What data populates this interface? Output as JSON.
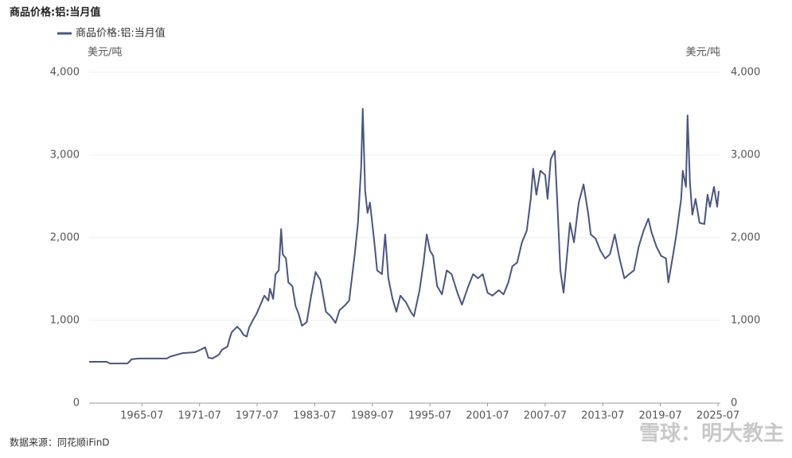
{
  "chart_data": {
    "type": "line",
    "title": "商品价格:铝:当月值",
    "y_label": "美元/吨",
    "y2_label": "美元/吨",
    "source": "数据来源：同花顺iFinD",
    "watermark": "雪球：明大教主",
    "xlim": [
      "1960-01",
      "2025-10"
    ],
    "xticks": [
      "1965-07",
      "1971-07",
      "1977-07",
      "1983-07",
      "1989-07",
      "1995-07",
      "2001-07",
      "2007-07",
      "2013-07",
      "2019-07",
      "2025-07"
    ],
    "ylim": [
      0,
      4000
    ],
    "yticks": [
      0,
      {
        "value": 1000,
        "label": "1,000"
      },
      {
        "value": 2000,
        "label": "2,000"
      },
      {
        "value": 3000,
        "label": "3,000"
      },
      {
        "value": 4000,
        "label": "4,000"
      }
    ],
    "y2lim": [
      0,
      4000
    ],
    "y2ticks": [
      0,
      {
        "value": 1000,
        "label": "1,000"
      },
      {
        "value": 2000,
        "label": "2,000"
      },
      {
        "value": 3000,
        "label": "3,000"
      },
      {
        "value": 4000,
        "label": "4,000"
      }
    ],
    "grid": true,
    "legend": "top-left",
    "x": [
      "1960-01",
      "1961-11",
      "1962-03",
      "1964-01",
      "1964-06",
      "1965-03",
      "1968-02",
      "1968-07",
      "1969-10",
      "1971-01",
      "1971-08",
      "1972-02",
      "1972-06",
      "1972-11",
      "1973-07",
      "1973-11",
      "1974-06",
      "1974-08",
      "1974-11",
      "1975-06",
      "1975-10",
      "1976-02",
      "1976-06",
      "1976-09",
      "1977-02",
      "1977-06",
      "1977-10",
      "1978-04",
      "1978-09",
      "1978-11",
      "1979-03",
      "1979-06",
      "1979-10",
      "1980-01",
      "1980-03",
      "1980-07",
      "1980-10",
      "1981-03",
      "1981-07",
      "1981-11",
      "1982-03",
      "1982-09",
      "1983-02",
      "1983-08",
      "1984-02",
      "1984-06",
      "1984-09",
      "1985-03",
      "1985-09",
      "1986-02",
      "1986-08",
      "1987-02",
      "1987-06",
      "1987-09",
      "1988-01",
      "1988-05",
      "1988-07",
      "1988-10",
      "1989-01",
      "1989-04",
      "1989-09",
      "1990-01",
      "1990-07",
      "1990-11",
      "1991-03",
      "1991-08",
      "1992-01",
      "1992-06",
      "1993-01",
      "1993-07",
      "1993-11",
      "1994-06",
      "1994-11",
      "1995-03",
      "1995-07",
      "1995-11",
      "1996-04",
      "1996-10",
      "1997-04",
      "1997-10",
      "1998-06",
      "1998-11",
      "1999-07",
      "2000-01",
      "2000-07",
      "2001-01",
      "2001-07",
      "2002-01",
      "2002-09",
      "2003-03",
      "2003-09",
      "2004-02",
      "2004-08",
      "2005-02",
      "2005-08",
      "2006-01",
      "2006-04",
      "2006-08",
      "2007-01",
      "2007-07",
      "2007-10",
      "2008-02",
      "2008-07",
      "2008-10",
      "2009-02",
      "2009-06",
      "2009-10",
      "2010-02",
      "2010-07",
      "2011-01",
      "2011-07",
      "2012-01",
      "2012-04",
      "2012-10",
      "2013-04",
      "2013-10",
      "2014-04",
      "2014-10",
      "2015-04",
      "2015-10",
      "2016-04",
      "2016-10",
      "2017-04",
      "2017-10",
      "2018-04",
      "2018-08",
      "2019-02",
      "2019-08",
      "2020-02",
      "2020-05",
      "2020-11",
      "2021-03",
      "2021-09",
      "2021-11",
      "2022-03",
      "2022-05",
      "2022-08",
      "2022-11",
      "2023-03",
      "2023-08",
      "2024-02",
      "2024-06",
      "2024-09",
      "2025-02",
      "2025-06",
      "2025-08"
    ],
    "series": [
      {
        "name": "商品价格:铝:当月值",
        "color": "#4a5580",
        "values": [
          500,
          500,
          480,
          480,
          530,
          540,
          540,
          565,
          605,
          615,
          645,
          675,
          550,
          540,
          585,
          645,
          685,
          760,
          855,
          925,
          885,
          825,
          805,
          915,
          1010,
          1075,
          1165,
          1300,
          1240,
          1385,
          1260,
          1560,
          1605,
          2105,
          1800,
          1750,
          1460,
          1415,
          1175,
          1075,
          935,
          980,
          1270,
          1585,
          1490,
          1270,
          1105,
          1050,
          970,
          1125,
          1175,
          1240,
          1560,
          1800,
          2180,
          2855,
          3560,
          2565,
          2300,
          2425,
          1990,
          1605,
          1560,
          2040,
          1510,
          1270,
          1105,
          1300,
          1220,
          1105,
          1050,
          1365,
          1700,
          2040,
          1845,
          1780,
          1415,
          1315,
          1605,
          1560,
          1315,
          1190,
          1415,
          1560,
          1510,
          1560,
          1335,
          1300,
          1365,
          1315,
          1460,
          1655,
          1700,
          1945,
          2085,
          2470,
          2835,
          2520,
          2810,
          2760,
          2470,
          2950,
          3050,
          2470,
          1605,
          1335,
          1750,
          2180,
          1945,
          2425,
          2645,
          2280,
          2040,
          1990,
          1845,
          1750,
          1800,
          2040,
          1750,
          1510,
          1560,
          1605,
          1895,
          2085,
          2230,
          2065,
          1895,
          1780,
          1750,
          1460,
          1800,
          2040,
          2470,
          2810,
          2615,
          3480,
          2665,
          2280,
          2470,
          2180,
          2165,
          2520,
          2375,
          2615,
          2375,
          2565
        ]
      }
    ]
  }
}
